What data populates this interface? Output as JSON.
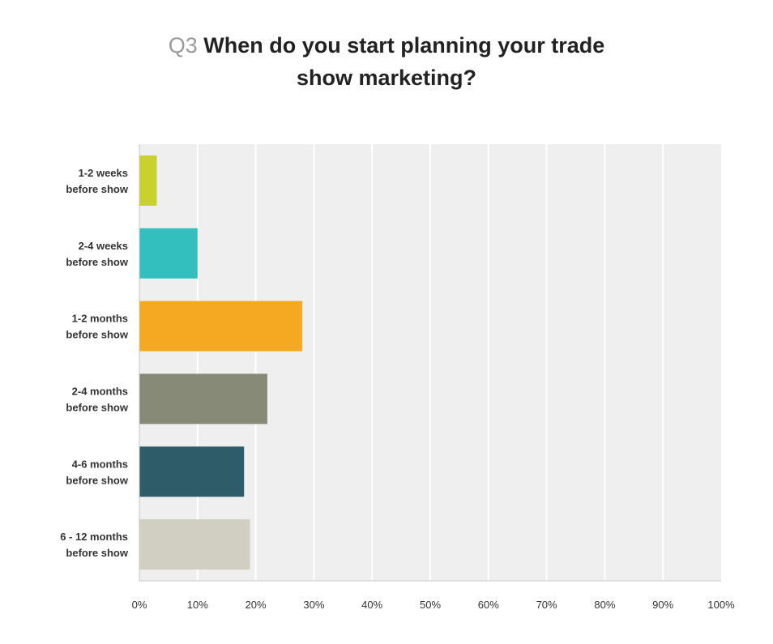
{
  "chart_data": {
    "type": "bar",
    "orientation": "horizontal",
    "question_number": "Q3",
    "title_line1": "When do you start planning your trade",
    "title_line2": "show marketing?",
    "categories": [
      [
        "1-2 weeks",
        "before show"
      ],
      [
        "2-4 weeks",
        "before show"
      ],
      [
        "1-2 months",
        "before show"
      ],
      [
        "2-4 months",
        "before show"
      ],
      [
        "4-6 months",
        "before show"
      ],
      [
        "6 - 12 months",
        "before show"
      ]
    ],
    "values": [
      3,
      10,
      28,
      22,
      18,
      19
    ],
    "colors": [
      "#c9d22d",
      "#34bfbf",
      "#f5a923",
      "#888a78",
      "#2e5d69",
      "#d0cfc2"
    ],
    "xlim": [
      0,
      100
    ],
    "xticks": [
      "0%",
      "10%",
      "20%",
      "30%",
      "40%",
      "50%",
      "60%",
      "70%",
      "80%",
      "90%",
      "100%"
    ],
    "grid": true,
    "plot_background": "#efefef"
  }
}
